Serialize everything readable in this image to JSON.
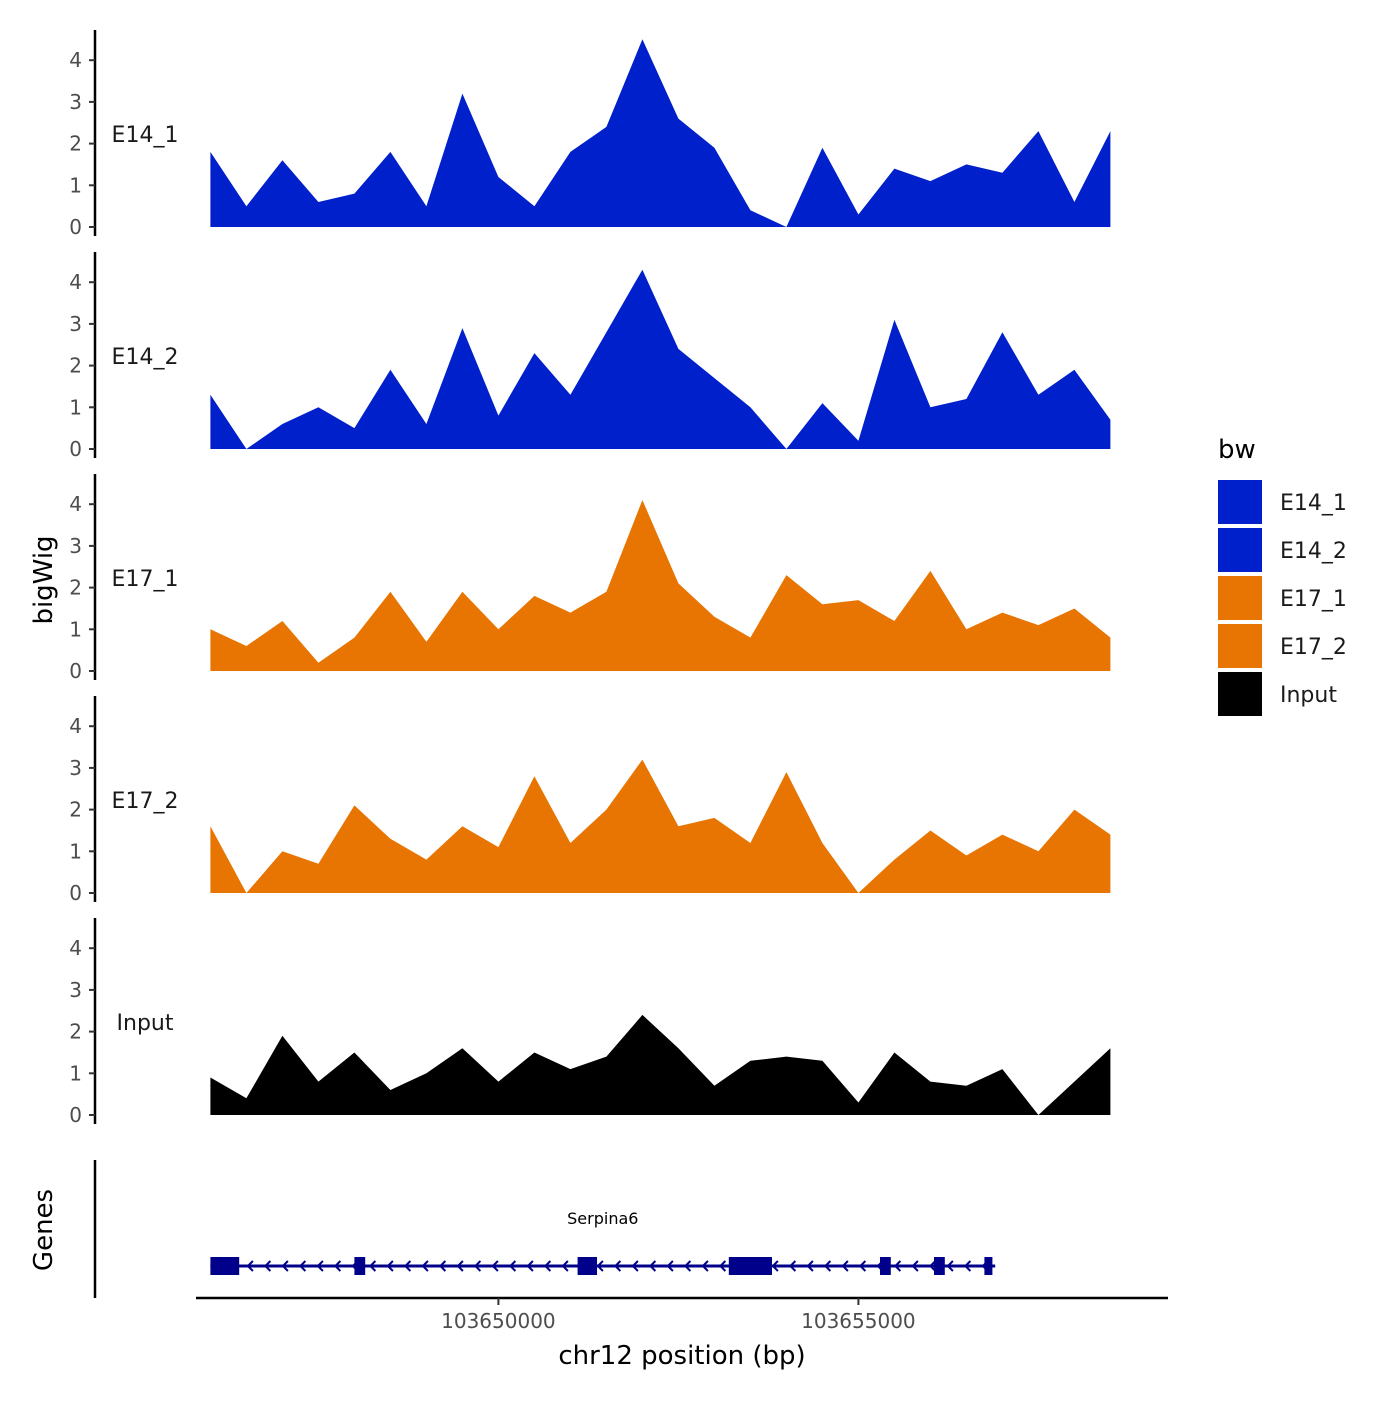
{
  "chart_data": {
    "type": "area",
    "title": "",
    "ylabel": "bigWig",
    "xlabel": "chr12 position (bp)",
    "genes_label": "Genes",
    "ylim": [
      0,
      4.6
    ],
    "yticks": [
      0,
      1,
      2,
      3,
      4
    ],
    "xlim": [
      103645800,
      103659300
    ],
    "xticks": [
      103650000,
      103655000
    ],
    "xtick_labels": [
      "103650000",
      "103655000"
    ],
    "legend": {
      "title": "bw",
      "placement": "right",
      "entries": [
        {
          "label": "E14_1",
          "color": "#0020CC"
        },
        {
          "label": "E14_2",
          "color": "#0020CC"
        },
        {
          "label": "E17_1",
          "color": "#E87502"
        },
        {
          "label": "E17_2",
          "color": "#E87502"
        },
        {
          "label": "Input",
          "color": "#000000"
        }
      ]
    },
    "x": [
      103646000,
      103646500,
      103647000,
      103647500,
      103648000,
      103648500,
      103649000,
      103649500,
      103650000,
      103650500,
      103651000,
      103651500,
      103652000,
      103652500,
      103653000,
      103653500,
      103654000,
      103654500,
      103655000,
      103655500,
      103656000,
      103656500,
      103657000,
      103657500,
      103658000,
      103658500
    ],
    "series": [
      {
        "name": "E14_1",
        "color": "#0020CC",
        "values": [
          1.8,
          0.5,
          1.6,
          0.6,
          0.8,
          1.8,
          0.5,
          3.2,
          1.2,
          0.5,
          1.8,
          2.4,
          4.5,
          2.6,
          1.9,
          0.4,
          0.0,
          1.9,
          0.3,
          1.4,
          1.1,
          1.5,
          1.3,
          2.3,
          0.6,
          2.3
        ]
      },
      {
        "name": "E14_2",
        "color": "#0020CC",
        "values": [
          1.3,
          0.0,
          0.6,
          1.0,
          0.5,
          1.9,
          0.6,
          2.9,
          0.8,
          2.3,
          1.3,
          2.8,
          4.3,
          2.4,
          1.7,
          1.0,
          0.0,
          1.1,
          0.2,
          3.1,
          1.0,
          1.2,
          2.8,
          1.3,
          1.9,
          0.7
        ]
      },
      {
        "name": "E17_1",
        "color": "#E87502",
        "values": [
          1.0,
          0.6,
          1.2,
          0.2,
          0.8,
          1.9,
          0.7,
          1.9,
          1.0,
          1.8,
          1.4,
          1.9,
          4.1,
          2.1,
          1.3,
          0.8,
          2.3,
          1.6,
          1.7,
          1.2,
          2.4,
          1.0,
          1.4,
          1.1,
          1.5,
          0.8
        ]
      },
      {
        "name": "E17_2",
        "color": "#E87502",
        "values": [
          1.6,
          0.0,
          1.0,
          0.7,
          2.1,
          1.3,
          0.8,
          1.6,
          1.1,
          2.8,
          1.2,
          2.0,
          3.2,
          1.6,
          1.8,
          1.2,
          2.9,
          1.2,
          0.0,
          0.8,
          1.5,
          0.9,
          1.4,
          1.0,
          2.0,
          1.4
        ]
      },
      {
        "name": "Input",
        "color": "#000000",
        "values": [
          0.9,
          0.4,
          1.9,
          0.8,
          1.5,
          0.6,
          1.0,
          1.6,
          0.8,
          1.5,
          1.1,
          1.4,
          2.4,
          1.6,
          0.7,
          1.3,
          1.4,
          1.3,
          0.3,
          1.5,
          0.8,
          0.7,
          1.1,
          0.0,
          0.8,
          1.6
        ]
      }
    ],
    "genes": [
      {
        "name": "Serpina6",
        "strand": "-",
        "color": "#00008B",
        "start": 103646000,
        "end": 103656900,
        "exons": [
          [
            103646000,
            103646400
          ],
          [
            103648000,
            103648150
          ],
          [
            103651100,
            103651370
          ],
          [
            103653200,
            103653800
          ],
          [
            103655300,
            103655450
          ],
          [
            103656050,
            103656200
          ],
          [
            103656750,
            103656850
          ]
        ]
      }
    ]
  }
}
